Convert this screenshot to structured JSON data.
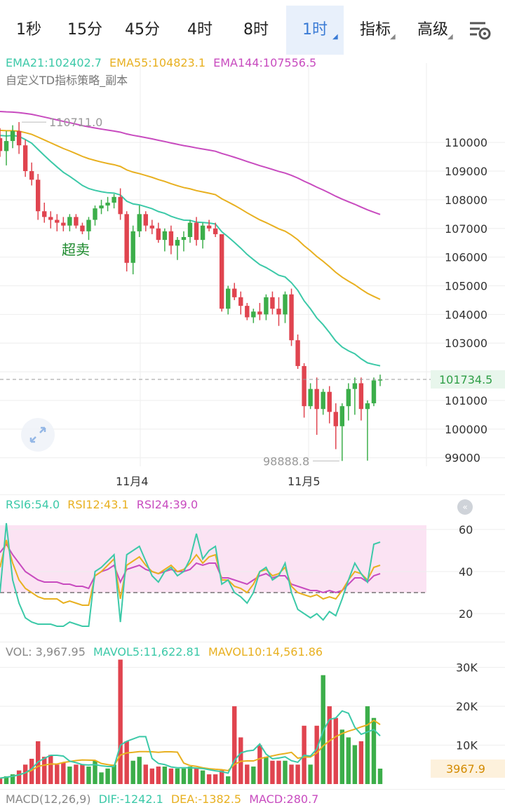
{
  "tabs": [
    {
      "label": "1秒",
      "dropdown": false,
      "active": false
    },
    {
      "label": "15分",
      "dropdown": false,
      "active": false
    },
    {
      "label": "45分",
      "dropdown": false,
      "active": false
    },
    {
      "label": "4时",
      "dropdown": false,
      "active": false
    },
    {
      "label": "8时",
      "dropdown": false,
      "active": false
    },
    {
      "label": "1时",
      "dropdown": true,
      "active": true
    },
    {
      "label": "指标",
      "dropdown": true,
      "active": false
    },
    {
      "label": "高级",
      "dropdown": true,
      "active": false
    }
  ],
  "settings_icon": "chart-settings-icon",
  "colors": {
    "up": "#3cae4a",
    "down": "#e0444f",
    "ema21": "#3cc9a8",
    "ema55": "#e8b020",
    "ema144": "#c84bbf",
    "rsi6": "#3cc9a8",
    "rsi12": "#e8b020",
    "rsi24": "#c84bbf",
    "grid": "#eeeeee",
    "rsi_band": "#fbe3f3",
    "current_price_bg": "#e8f6ec",
    "vol_tag_bg": "#fdf1dc"
  },
  "main_legend": {
    "ema21": "EMA21:102402.7",
    "ema55": "EMA55:104823.1",
    "ema144": "EMA144:107556.5",
    "strategy": "自定义TD指标策略_副本"
  },
  "rsi_legend": {
    "rsi6": "RSI6:54.0",
    "rsi12": "RSI12:43.1",
    "rsi24": "RSI24:39.0"
  },
  "vol_legend": {
    "vol": "VOL: 3,967.95",
    "mavol5": "MAVOL5:11,622.81",
    "mavol10": "MAVOL10:14,561.86"
  },
  "macd_legend": {
    "title": "MACD(12,26,9)",
    "dif": "DIF:-1242.1",
    "dea": "DEA:-1382.5",
    "macd": "MACD:280.7"
  },
  "chart_data": [
    {
      "type": "candlestick",
      "title": "",
      "price_axis": {
        "ticks": [
          110000,
          109000,
          108000,
          107000,
          106000,
          105000,
          104000,
          103000,
          101000,
          100000,
          99000
        ],
        "range": [
          98700,
          111300
        ]
      },
      "date_labels": [
        "11月4",
        "11月5"
      ],
      "annotations": {
        "high_label": "110711.0",
        "low_label": "98888.8",
        "current_price": "101734.5",
        "signal_text": "超卖"
      },
      "candles": [
        [
          110150,
          110500,
          109500,
          109700
        ],
        [
          109700,
          110400,
          109200,
          110050
        ],
        [
          110050,
          110600,
          109800,
          110400
        ],
        [
          110400,
          110711,
          109600,
          109900
        ],
        [
          109900,
          110100,
          108800,
          109000
        ],
        [
          109000,
          109300,
          108500,
          108700
        ],
        [
          108700,
          108900,
          107300,
          107600
        ],
        [
          107600,
          107900,
          107200,
          107400
        ],
        [
          107400,
          107600,
          107000,
          107300
        ],
        [
          107300,
          107500,
          106900,
          107200
        ],
        [
          107200,
          107400,
          106900,
          107100
        ],
        [
          107100,
          107500,
          106900,
          107400
        ],
        [
          107400,
          107500,
          107000,
          107100
        ],
        [
          107100,
          107200,
          106800,
          106900
        ],
        [
          106900,
          107400,
          106600,
          107300
        ],
        [
          107300,
          107800,
          107100,
          107700
        ],
        [
          107700,
          108000,
          107500,
          107800
        ],
        [
          107800,
          108100,
          107600,
          107900
        ],
        [
          107900,
          108200,
          107700,
          108100
        ],
        [
          108100,
          108400,
          107300,
          107500
        ],
        [
          107500,
          107600,
          105500,
          105800
        ],
        [
          105800,
          107100,
          105400,
          106900
        ],
        [
          106900,
          107800,
          106700,
          107500
        ],
        [
          107500,
          107600,
          106900,
          107100
        ],
        [
          107100,
          107300,
          106800,
          107000
        ],
        [
          107000,
          107200,
          106500,
          106600
        ],
        [
          106600,
          107000,
          106200,
          106900
        ],
        [
          106900,
          107100,
          106100,
          106400
        ],
        [
          106400,
          106700,
          105900,
          106600
        ],
        [
          106600,
          106900,
          106200,
          106700
        ],
        [
          106700,
          107300,
          106500,
          107200
        ],
        [
          107200,
          107400,
          106400,
          106600
        ],
        [
          106600,
          107200,
          106300,
          107100
        ],
        [
          107100,
          107300,
          106900,
          107000
        ],
        [
          107000,
          107200,
          106700,
          106800
        ],
        [
          106800,
          106800,
          104100,
          104200
        ],
        [
          104200,
          105000,
          104000,
          104900
        ],
        [
          104900,
          105100,
          104500,
          104600
        ],
        [
          104600,
          104800,
          104000,
          104300
        ],
        [
          104300,
          104400,
          103800,
          103900
        ],
        [
          103900,
          104200,
          103700,
          104100
        ],
        [
          104100,
          104400,
          103800,
          104000
        ],
        [
          104000,
          104700,
          103800,
          104600
        ],
        [
          104600,
          104800,
          104000,
          104200
        ],
        [
          104200,
          104600,
          103600,
          104000
        ],
        [
          104000,
          104800,
          103700,
          104700
        ],
        [
          104700,
          104900,
          102900,
          103100
        ],
        [
          103100,
          103300,
          102100,
          102200
        ],
        [
          102200,
          102300,
          100400,
          100800
        ],
        [
          100800,
          101600,
          100700,
          101400
        ],
        [
          101400,
          101800,
          99800,
          100700
        ],
        [
          100700,
          101400,
          100500,
          101300
        ],
        [
          101300,
          101500,
          100200,
          100600
        ],
        [
          100600,
          100900,
          99300,
          100100
        ],
        [
          100100,
          100900,
          98888.8,
          100800
        ],
        [
          100800,
          101600,
          100300,
          101400
        ],
        [
          101400,
          101800,
          100500,
          101600
        ],
        [
          101600,
          101800,
          100300,
          100700
        ],
        [
          100700,
          101000,
          98900,
          100900
        ],
        [
          100900,
          101800,
          100800,
          101700
        ],
        [
          101700,
          101900,
          101500,
          101730
        ]
      ]
    },
    {
      "type": "line",
      "title": "RSI",
      "ylim": [
        10,
        70
      ],
      "y_ticks": [
        60,
        40,
        20
      ],
      "overbought_band": [
        30,
        62
      ],
      "reference_line": 30,
      "series": [
        {
          "name": "RSI6",
          "values": [
            30,
            63,
            36,
            25,
            18,
            16,
            15,
            15,
            15,
            14,
            14,
            16,
            15,
            14,
            14,
            40,
            42,
            45,
            48,
            16,
            48,
            50,
            52,
            45,
            38,
            35,
            40,
            42,
            38,
            40,
            46,
            58,
            46,
            50,
            52,
            34,
            36,
            30,
            28,
            25,
            30,
            40,
            42,
            36,
            38,
            44,
            30,
            22,
            20,
            18,
            20,
            17,
            21,
            19,
            27,
            36,
            44,
            39,
            35,
            53,
            54
          ]
        },
        {
          "name": "RSI12",
          "values": [
            42,
            55,
            44,
            36,
            32,
            30,
            28,
            27,
            27,
            27,
            25,
            26,
            25,
            24,
            24,
            38,
            40,
            43,
            46,
            27,
            43,
            45,
            47,
            43,
            40,
            39,
            41,
            43,
            40,
            41,
            44,
            48,
            44,
            47,
            48,
            36,
            36,
            33,
            32,
            30,
            34,
            40,
            41,
            38,
            39,
            42,
            33,
            30,
            29,
            28,
            29,
            27,
            28,
            27,
            31,
            36,
            40,
            39,
            36,
            42,
            43
          ]
        },
        {
          "name": "RSI24",
          "values": [
            49,
            53,
            48,
            44,
            40,
            38,
            36,
            35,
            35,
            35,
            34,
            34,
            33,
            33,
            32,
            38,
            40,
            41,
            43,
            35,
            41,
            42,
            43,
            41,
            40,
            39,
            40,
            41,
            40,
            40,
            41,
            44,
            43,
            44,
            44,
            37,
            37,
            36,
            35,
            34,
            36,
            38,
            39,
            37,
            38,
            38,
            34,
            33,
            32,
            31,
            31,
            30,
            31,
            30,
            31,
            34,
            37,
            37,
            35,
            38,
            39
          ]
        }
      ]
    },
    {
      "type": "bar",
      "title": "VOL",
      "ylim": [
        0,
        33000
      ],
      "y_ticks": [
        "30K",
        "20K",
        "10K"
      ],
      "current_tag": "3967.9",
      "values": [
        1500,
        2000,
        2500,
        3500,
        5000,
        6500,
        11000,
        7000,
        7500,
        5000,
        5500,
        4500,
        5000,
        5000,
        4500,
        6000,
        3000,
        4000,
        5000,
        32000,
        11000,
        6000,
        7000,
        5000,
        4000,
        4500,
        4500,
        4000,
        4000,
        4000,
        4500,
        4000,
        3500,
        2500,
        2500,
        3500,
        2000,
        20000,
        12000,
        5000,
        4500,
        10000,
        7000,
        6000,
        6000,
        6000,
        5000,
        5000,
        15000,
        5000,
        15000,
        28000,
        20000,
        17000,
        14000,
        12000,
        10000,
        11000,
        20000,
        17000,
        3968
      ]
    }
  ]
}
